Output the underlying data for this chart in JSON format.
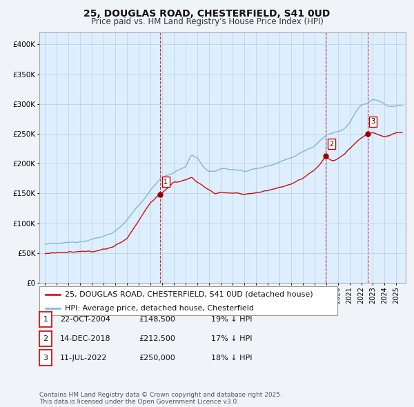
{
  "title": "25, DOUGLAS ROAD, CHESTERFIELD, S41 0UD",
  "subtitle": "Price paid vs. HM Land Registry's House Price Index (HPI)",
  "hpi_color": "#7ab4d8",
  "price_color": "#cc0000",
  "sale_dates": [
    2004.81,
    2018.96,
    2022.53
  ],
  "sale_prices": [
    148500,
    212500,
    250000
  ],
  "sale_labels": [
    "1",
    "2",
    "3"
  ],
  "vline_color": "#cc0000",
  "background_color": "#f0f4f8",
  "plot_bg_color": "#ddeeff",
  "grid_color": "#bbccdd",
  "yticks": [
    0,
    50000,
    100000,
    150000,
    200000,
    250000,
    300000,
    350000,
    400000
  ],
  "ytick_labels": [
    "£0",
    "£50K",
    "£100K",
    "£150K",
    "£200K",
    "£250K",
    "£300K",
    "£350K",
    "£400K"
  ],
  "xlim_start": 1994.5,
  "xlim_end": 2025.8,
  "ylim": [
    0,
    420000
  ],
  "legend_line1": "25, DOUGLAS ROAD, CHESTERFIELD, S41 0UD (detached house)",
  "legend_line2": "HPI: Average price, detached house, Chesterfield",
  "table_data": [
    [
      "1",
      "22-OCT-2004",
      "£148,500",
      "19% ↓ HPI"
    ],
    [
      "2",
      "14-DEC-2018",
      "£212,500",
      "17% ↓ HPI"
    ],
    [
      "3",
      "11-JUL-2022",
      "£250,000",
      "18% ↓ HPI"
    ]
  ],
  "footnote": "Contains HM Land Registry data © Crown copyright and database right 2025.\nThis data is licensed under the Open Government Licence v3.0.",
  "title_fontsize": 10,
  "subtitle_fontsize": 8.5,
  "tick_fontsize": 7.5,
  "legend_fontsize": 8,
  "table_fontsize": 8,
  "footnote_fontsize": 6.5
}
